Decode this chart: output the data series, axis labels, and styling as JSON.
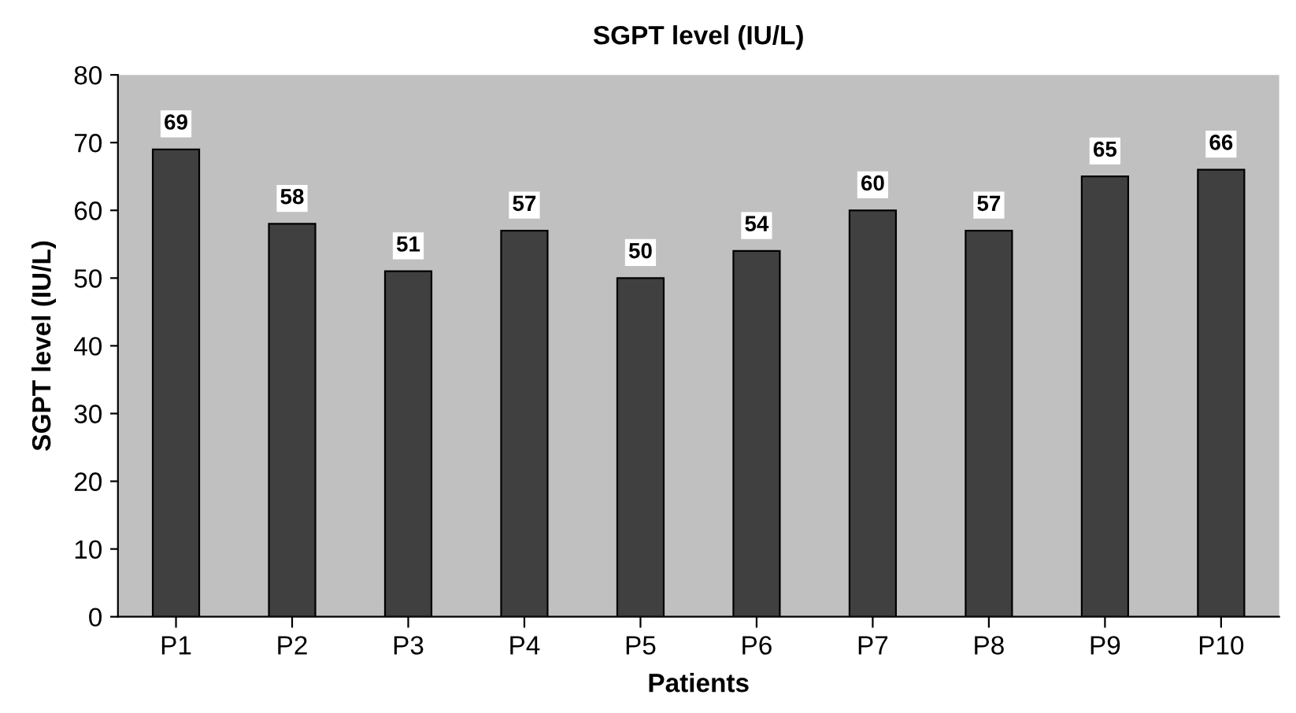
{
  "chart_data": {
    "type": "bar",
    "title": "SGPT level (IU/L)",
    "xlabel": "Patients",
    "ylabel": "SGPT level (IU/L)",
    "categories": [
      "P1",
      "P2",
      "P3",
      "P4",
      "P5",
      "P6",
      "P7",
      "P8",
      "P9",
      "P10"
    ],
    "values": [
      69,
      58,
      51,
      57,
      50,
      54,
      60,
      57,
      65,
      66
    ],
    "color": "#404040",
    "ylim": [
      0,
      80
    ],
    "yticks": [
      0,
      10,
      20,
      30,
      40,
      50,
      60,
      70,
      80
    ],
    "grid": false,
    "data_labels": true
  }
}
